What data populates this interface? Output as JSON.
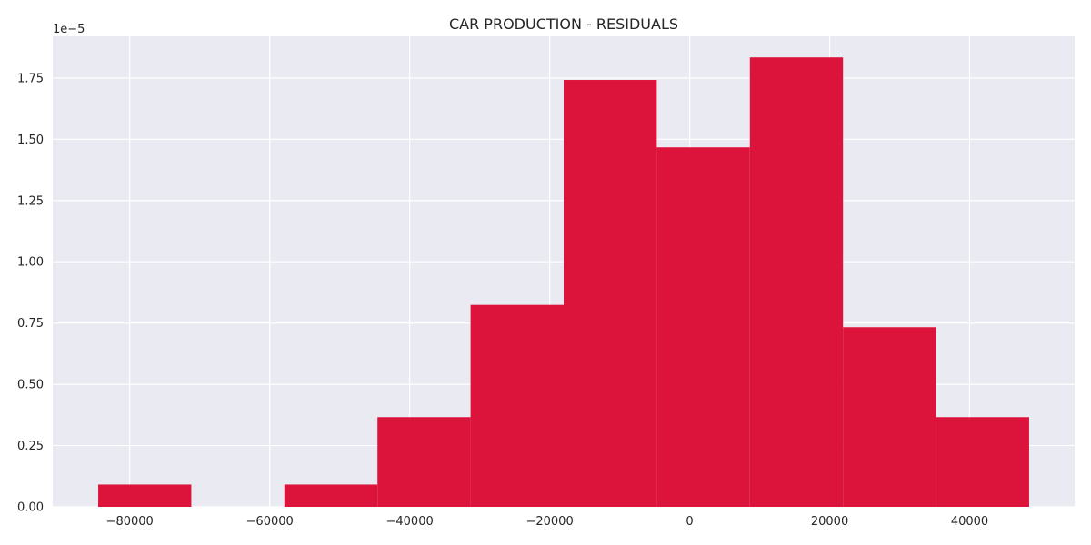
{
  "chart_data": {
    "type": "bar",
    "title": "CAR PRODUCTION - RESIDUALS",
    "xlabel": "",
    "ylabel": "",
    "y_scale_label": "1e−5",
    "bar_color": "#DC143C",
    "plot_background": "#EAEAF2",
    "grid": true,
    "xlim": [
      -91000,
      55000
    ],
    "ylim": [
      0,
      1.92
    ],
    "x_ticks": [
      -80000,
      -60000,
      -40000,
      -20000,
      0,
      20000,
      40000
    ],
    "x_tick_labels": [
      "−80000",
      "−60000",
      "−40000",
      "−20000",
      "0",
      "20000",
      "40000"
    ],
    "y_ticks": [
      0,
      0.25,
      0.5,
      0.75,
      1.0,
      1.25,
      1.5,
      1.75
    ],
    "y_tick_labels": [
      "0.00",
      "0.25",
      "0.50",
      "0.75",
      "1.00",
      "1.25",
      "1.50",
      "1.75"
    ],
    "bins": [
      {
        "x0": -84500,
        "x1": -71200,
        "value": 0.091
      },
      {
        "x0": -71200,
        "x1": -57900,
        "value": 0.0
      },
      {
        "x0": -57900,
        "x1": -44600,
        "value": 0.091
      },
      {
        "x0": -44600,
        "x1": -31300,
        "value": 0.366
      },
      {
        "x0": -31300,
        "x1": -18000,
        "value": 0.824
      },
      {
        "x0": -18000,
        "x1": -4700,
        "value": 1.742
      },
      {
        "x0": -4700,
        "x1": 8600,
        "value": 1.467
      },
      {
        "x0": 8600,
        "x1": 21900,
        "value": 1.834
      },
      {
        "x0": 21900,
        "x1": 35200,
        "value": 0.733
      },
      {
        "x0": 35200,
        "x1": 48500,
        "value": 0.366
      }
    ]
  }
}
